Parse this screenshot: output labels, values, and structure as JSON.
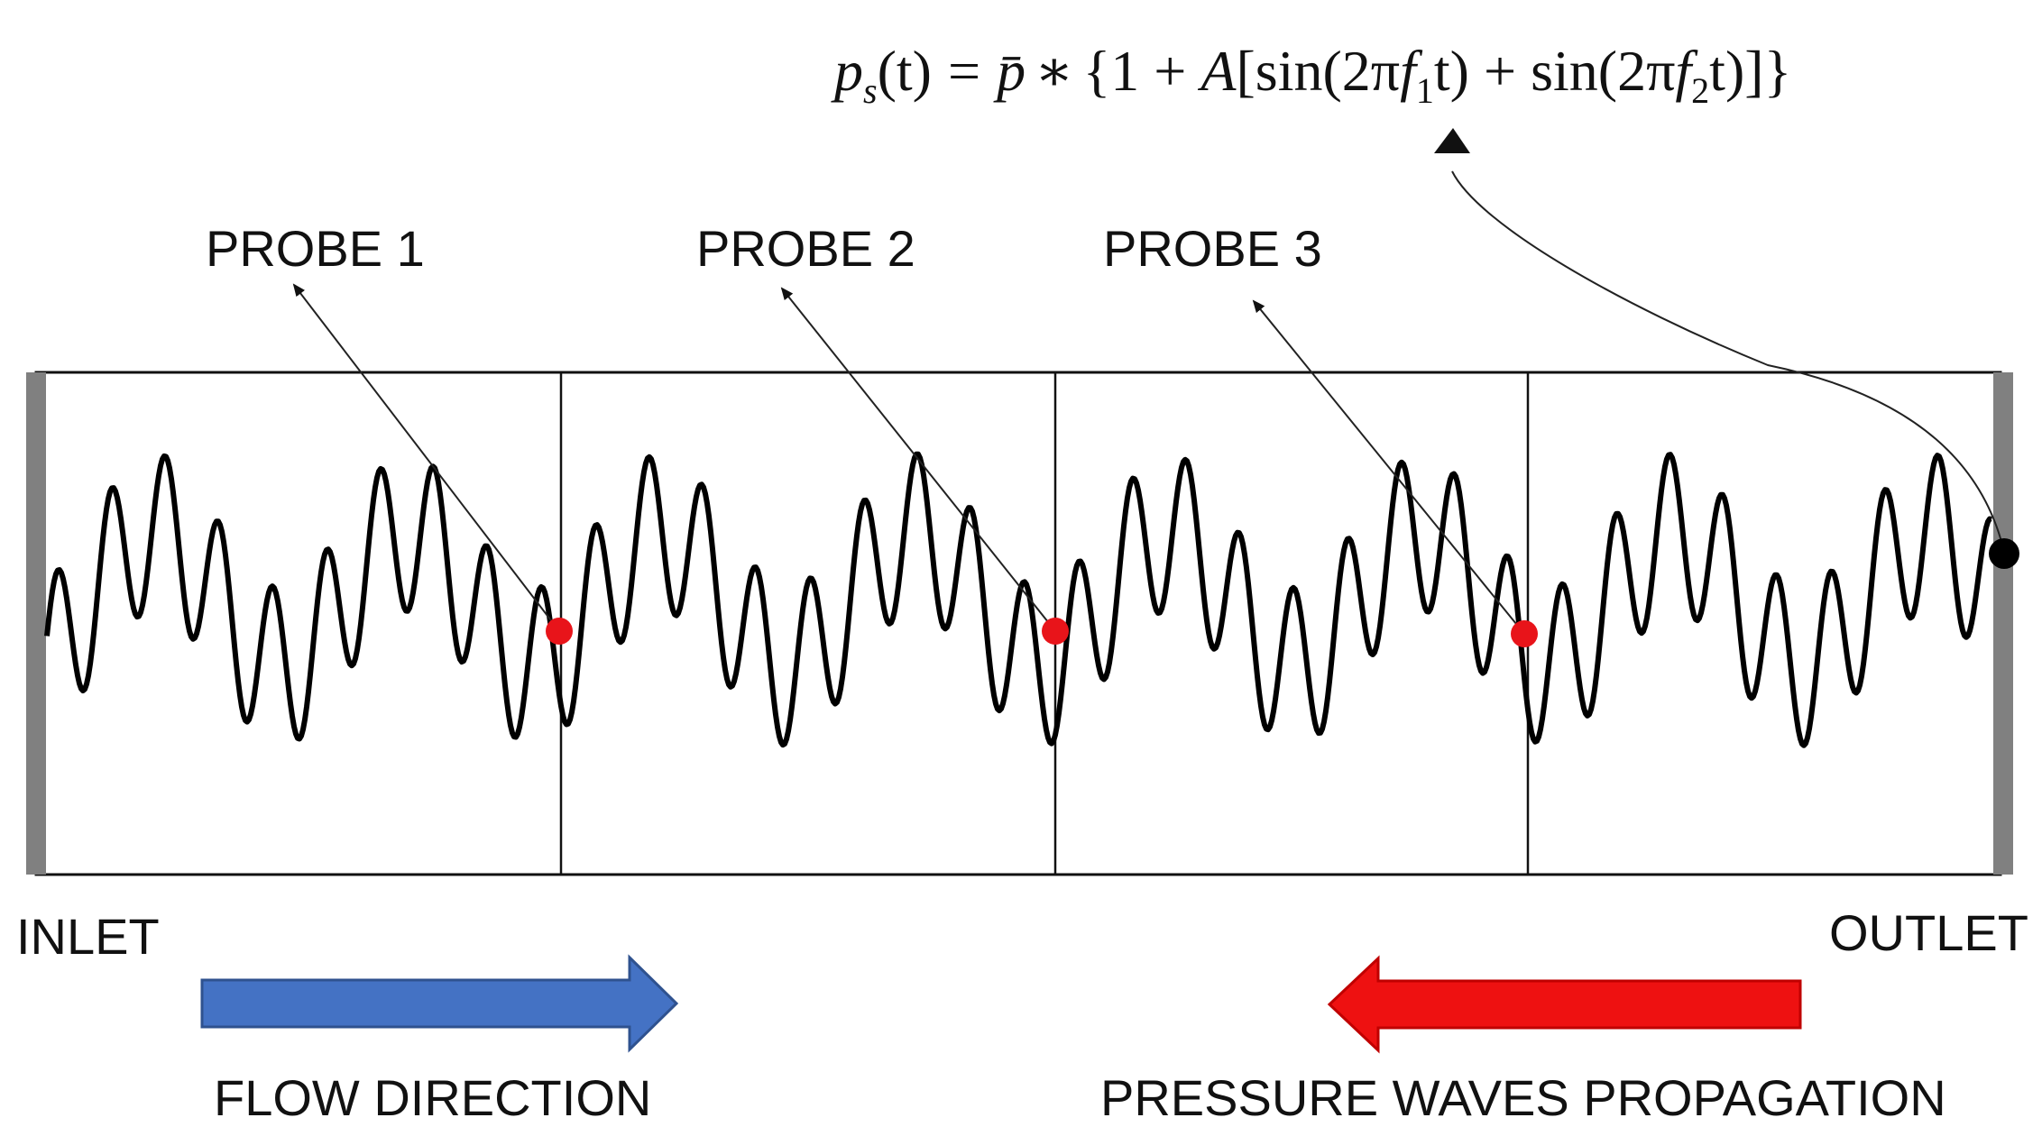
{
  "diagram": {
    "formula": {
      "lhs_p": "p",
      "lhs_sub": "s",
      "lhs_arg": "(t)",
      "eq": "=",
      "pbar": "p̄",
      "times": "∗",
      "open": "{1 + ",
      "A": "A",
      "sin1_open": "[sin(2π",
      "f1": "f",
      "f1_sub": "1",
      "sin1_close": "t) + sin(2π",
      "f2": "f",
      "f2_sub": "2",
      "close": "t)]}"
    },
    "probes": [
      {
        "label": "PROBE 1"
      },
      {
        "label": "PROBE 2"
      },
      {
        "label": "PROBE 3"
      }
    ],
    "inlet_label": "INLET",
    "outlet_label": "OUTLET",
    "flow_label": "FLOW DIRECTION",
    "pressure_label": "PRESSURE WAVES PROPAGATION",
    "colors": {
      "probe_point": "#e8141a",
      "flow_arrow": "#4472c4",
      "pressure_arrow": "#ee1111",
      "wall": "#808080",
      "outlet_point": "#000000"
    }
  }
}
